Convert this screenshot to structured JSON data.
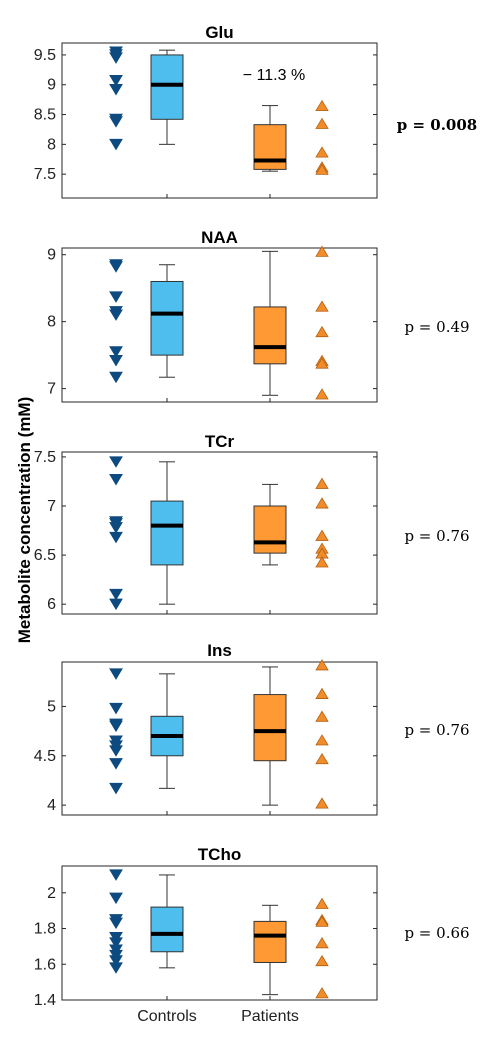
{
  "ylabel": "Metabolite concentration (mM)",
  "x_categories": [
    "Controls",
    "Patients"
  ],
  "colors": {
    "controls_box": "#4dbeee",
    "patients_box": "#ff9933",
    "controls_marker": "#0c4a80",
    "patients_marker": "#f08c2a",
    "median": "#000000"
  },
  "chart_data": [
    {
      "type": "box",
      "title": "Glu",
      "ylim": [
        7.1,
        9.7
      ],
      "yticks": [
        "7.5",
        "8",
        "8.5",
        "9",
        "9.5"
      ],
      "annotation": "− 11.3 %",
      "p_value": "p = 0.008",
      "p_bold": true,
      "series": [
        {
          "name": "Controls",
          "whisker_low": 8.0,
          "q1": 8.42,
          "median": 9.0,
          "q3": 9.5,
          "whisker_high": 9.58,
          "points": [
            9.55,
            9.5,
            9.45,
            9.07,
            8.92,
            8.42,
            8.38,
            8.0
          ]
        },
        {
          "name": "Patients",
          "whisker_low": 7.55,
          "q1": 7.58,
          "median": 7.73,
          "q3": 8.33,
          "whisker_high": 8.65,
          "points": [
            8.65,
            8.35,
            7.87,
            7.62,
            7.58
          ]
        }
      ]
    },
    {
      "type": "box",
      "title": "NAA",
      "ylim": [
        6.8,
        9.1
      ],
      "yticks": [
        "7",
        "8",
        "9"
      ],
      "annotation": "",
      "p_value": "p = 0.49",
      "p_bold": false,
      "series": [
        {
          "name": "Controls",
          "whisker_low": 7.17,
          "q1": 7.5,
          "median": 8.12,
          "q3": 8.6,
          "whisker_high": 8.85,
          "points": [
            8.85,
            8.82,
            8.37,
            8.15,
            8.1,
            7.55,
            7.42,
            7.17
          ]
        },
        {
          "name": "Patients",
          "whisker_low": 6.9,
          "q1": 7.37,
          "median": 7.62,
          "q3": 8.22,
          "whisker_high": 9.05,
          "points": [
            9.05,
            8.23,
            7.85,
            7.42,
            7.38,
            6.92
          ]
        }
      ]
    },
    {
      "type": "box",
      "title": "TCr",
      "ylim": [
        5.9,
        7.55
      ],
      "yticks": [
        "6",
        "6.5",
        "7",
        "7.5"
      ],
      "annotation": "",
      "p_value": "p = 0.76",
      "p_bold": false,
      "series": [
        {
          "name": "Controls",
          "whisker_low": 6.0,
          "q1": 6.4,
          "median": 6.8,
          "q3": 7.05,
          "whisker_high": 7.45,
          "points": [
            7.45,
            7.27,
            6.84,
            6.82,
            6.78,
            6.68,
            6.1,
            6.0
          ]
        },
        {
          "name": "Patients",
          "whisker_low": 6.4,
          "q1": 6.52,
          "median": 6.63,
          "q3": 7.0,
          "whisker_high": 7.22,
          "points": [
            7.23,
            7.03,
            6.7,
            6.57,
            6.52,
            6.43
          ]
        }
      ]
    },
    {
      "type": "box",
      "title": "Ins",
      "ylim": [
        3.9,
        5.45
      ],
      "yticks": [
        "4",
        "4.5",
        "5"
      ],
      "annotation": "",
      "p_value": "p = 0.76",
      "p_bold": false,
      "series": [
        {
          "name": "Controls",
          "whisker_low": 4.17,
          "q1": 4.5,
          "median": 4.7,
          "q3": 4.9,
          "whisker_high": 5.33,
          "points": [
            5.33,
            4.98,
            4.82,
            4.8,
            4.65,
            4.6,
            4.55,
            4.42,
            4.17
          ]
        },
        {
          "name": "Patients",
          "whisker_low": 4.0,
          "q1": 4.45,
          "median": 4.75,
          "q3": 5.12,
          "whisker_high": 5.4,
          "points": [
            5.42,
            5.13,
            4.9,
            4.66,
            4.47,
            4.02
          ]
        }
      ]
    },
    {
      "type": "box",
      "title": "TCho",
      "ylim": [
        1.4,
        2.15
      ],
      "yticks": [
        "1.4",
        "1.6",
        "1.8",
        "2"
      ],
      "annotation": "",
      "p_value": "p = 0.66",
      "p_bold": false,
      "series": [
        {
          "name": "Controls",
          "whisker_low": 1.58,
          "q1": 1.67,
          "median": 1.77,
          "q3": 1.92,
          "whisker_high": 2.1,
          "points": [
            2.1,
            1.97,
            1.85,
            1.83,
            1.75,
            1.72,
            1.68,
            1.65,
            1.62,
            1.58
          ]
        },
        {
          "name": "Patients",
          "whisker_low": 1.43,
          "q1": 1.61,
          "median": 1.76,
          "q3": 1.84,
          "whisker_high": 1.93,
          "points": [
            1.94,
            1.85,
            1.84,
            1.72,
            1.62,
            1.44
          ]
        }
      ]
    }
  ]
}
